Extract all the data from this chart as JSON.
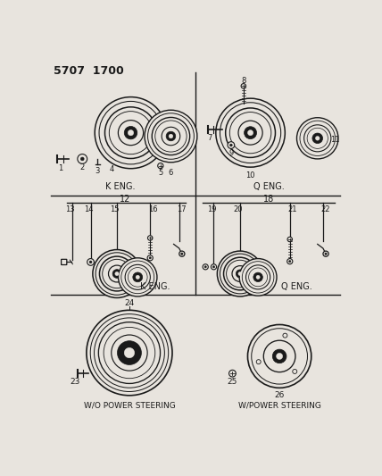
{
  "title": "5707  1700",
  "bg_color": "#e8e4de",
  "line_color": "#1a1a1a",
  "text_color": "#1a1a1a",
  "section_labels": {
    "k_eng_top": "K ENG.",
    "q_eng_top": "Q ENG.",
    "k_eng_mid": "K ENG.",
    "q_eng_mid": "Q ENG.",
    "wo_ps": "W/O POWER STEERING",
    "w_ps": "W/POWER STEERING"
  }
}
